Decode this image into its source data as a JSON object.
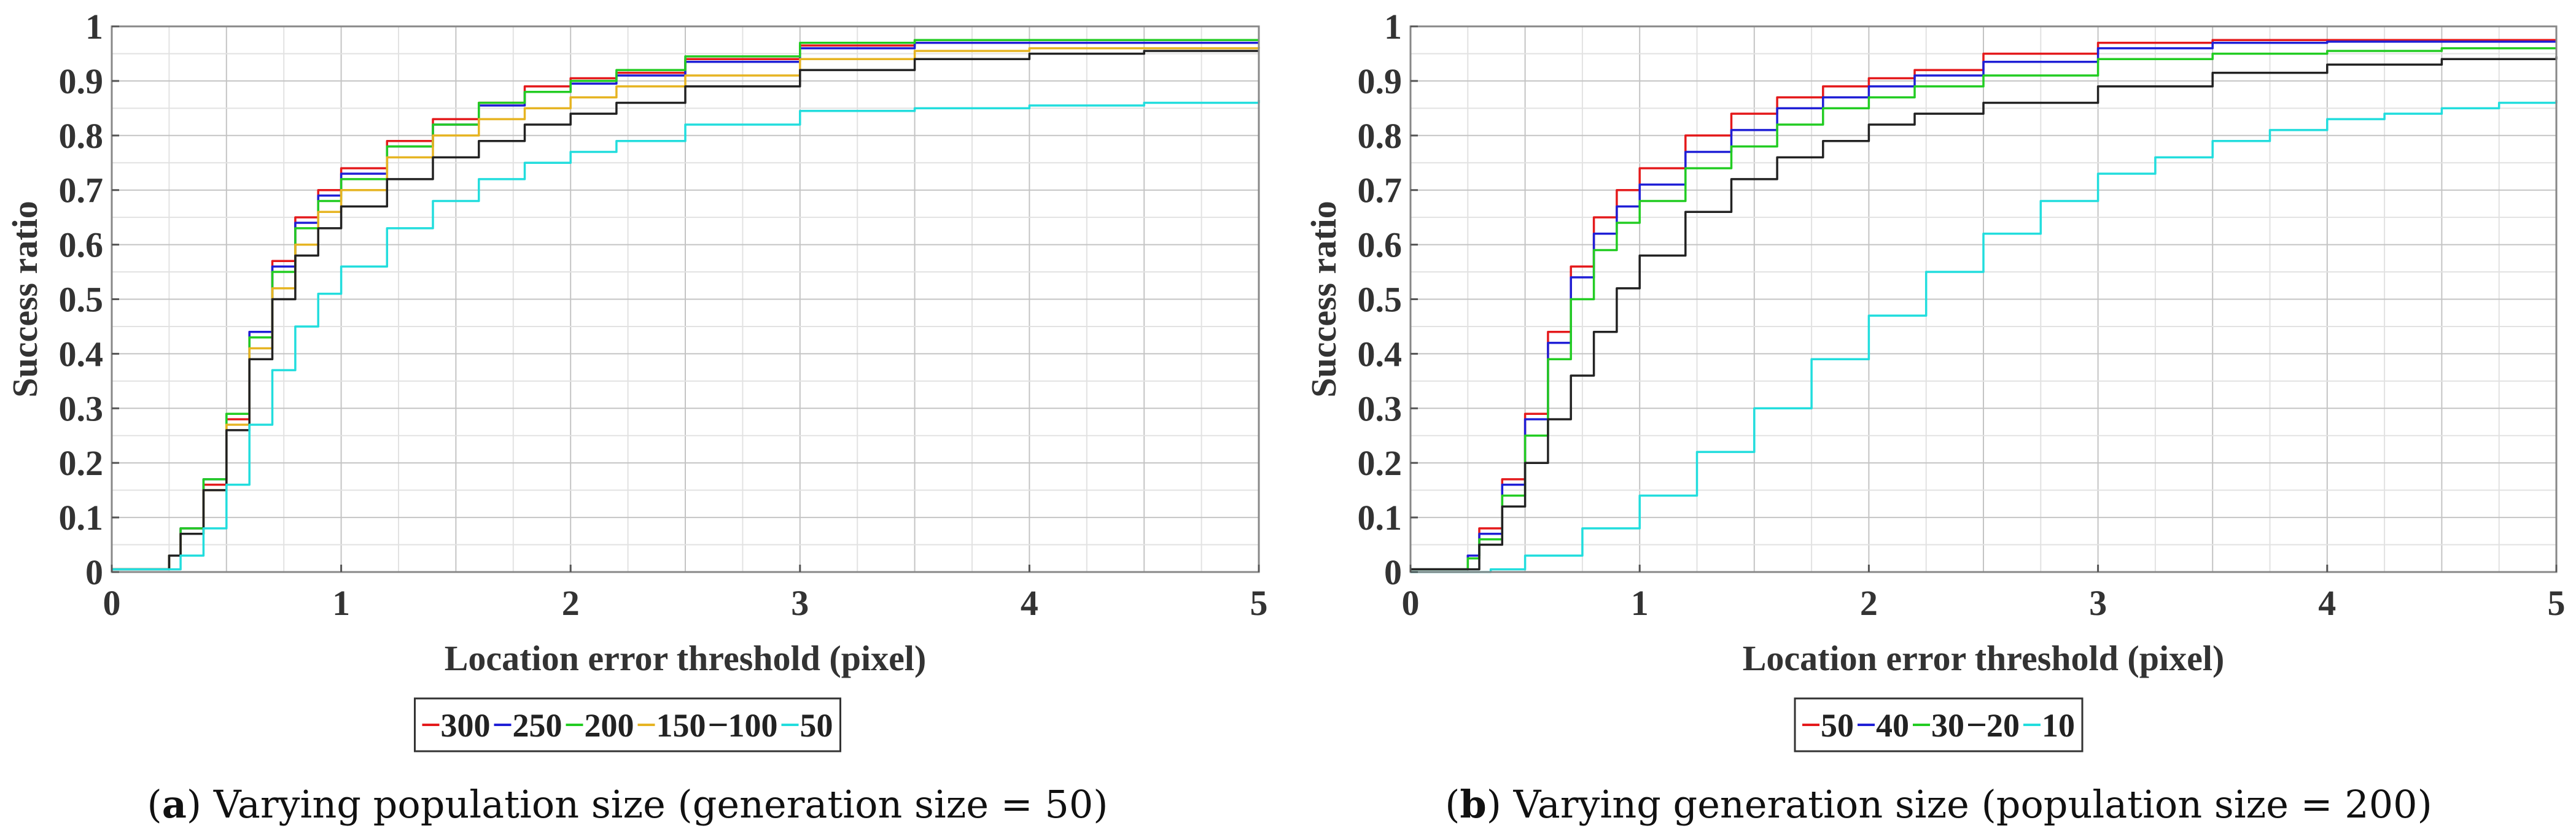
{
  "chart_data": [
    {
      "type": "line",
      "panel_letter": "a",
      "caption": "Varying population size (generation size = 50)",
      "xlabel": "Location error threshold (pixel)",
      "ylabel": "Success ratio",
      "xlim": [
        0,
        5
      ],
      "ylim": [
        0,
        1
      ],
      "x_ticks": [
        "0",
        "1",
        "2",
        "3",
        "4",
        "5"
      ],
      "y_ticks": [
        "0",
        "0.1",
        "0.2",
        "0.3",
        "0.4",
        "0.5",
        "0.6",
        "0.7",
        "0.8",
        "0.9",
        "1"
      ],
      "grid": true,
      "legend_position": "bottom-center",
      "series": [
        {
          "name": "300",
          "color": "#e41a1c",
          "x": [
            0,
            0.18,
            0.25,
            0.3,
            0.4,
            0.5,
            0.6,
            0.7,
            0.8,
            0.9,
            1.0,
            1.2,
            1.4,
            1.6,
            1.8,
            2.0,
            2.2,
            2.5,
            3.0,
            3.5,
            4.0,
            4.5,
            5.0
          ],
          "y": [
            0.005,
            0.005,
            0.03,
            0.08,
            0.16,
            0.28,
            0.44,
            0.57,
            0.65,
            0.7,
            0.74,
            0.79,
            0.83,
            0.86,
            0.89,
            0.905,
            0.915,
            0.94,
            0.965,
            0.975,
            0.975,
            0.975,
            0.975
          ]
        },
        {
          "name": "250",
          "color": "#1f1fd6",
          "x": [
            0,
            0.18,
            0.25,
            0.3,
            0.4,
            0.5,
            0.6,
            0.7,
            0.8,
            0.9,
            1.0,
            1.2,
            1.4,
            1.6,
            1.8,
            2.0,
            2.2,
            2.5,
            3.0,
            3.5,
            4.0,
            4.5,
            5.0
          ],
          "y": [
            0.005,
            0.005,
            0.03,
            0.08,
            0.17,
            0.29,
            0.44,
            0.56,
            0.64,
            0.69,
            0.73,
            0.78,
            0.82,
            0.855,
            0.88,
            0.895,
            0.91,
            0.935,
            0.96,
            0.97,
            0.97,
            0.97,
            0.97
          ]
        },
        {
          "name": "200",
          "color": "#22cc22",
          "x": [
            0,
            0.18,
            0.25,
            0.3,
            0.4,
            0.5,
            0.6,
            0.7,
            0.8,
            0.9,
            1.0,
            1.2,
            1.4,
            1.6,
            1.8,
            2.0,
            2.2,
            2.5,
            3.0,
            3.5,
            4.0,
            4.5,
            5.0
          ],
          "y": [
            0.005,
            0.005,
            0.03,
            0.08,
            0.17,
            0.29,
            0.43,
            0.55,
            0.63,
            0.68,
            0.72,
            0.78,
            0.82,
            0.86,
            0.88,
            0.9,
            0.92,
            0.945,
            0.97,
            0.975,
            0.975,
            0.975,
            0.975
          ]
        },
        {
          "name": "150",
          "color": "#e6b422",
          "x": [
            0,
            0.18,
            0.25,
            0.3,
            0.4,
            0.5,
            0.6,
            0.7,
            0.8,
            0.9,
            1.0,
            1.2,
            1.4,
            1.6,
            1.8,
            2.0,
            2.2,
            2.5,
            3.0,
            3.5,
            4.0,
            4.5,
            5.0
          ],
          "y": [
            0.005,
            0.005,
            0.03,
            0.07,
            0.15,
            0.27,
            0.41,
            0.52,
            0.6,
            0.66,
            0.7,
            0.76,
            0.8,
            0.83,
            0.85,
            0.87,
            0.89,
            0.91,
            0.94,
            0.955,
            0.96,
            0.96,
            0.962
          ]
        },
        {
          "name": "100",
          "color": "#222222",
          "x": [
            0,
            0.18,
            0.25,
            0.3,
            0.4,
            0.5,
            0.6,
            0.7,
            0.8,
            0.9,
            1.0,
            1.2,
            1.4,
            1.6,
            1.8,
            2.0,
            2.2,
            2.5,
            3.0,
            3.5,
            4.0,
            4.5,
            5.0
          ],
          "y": [
            0.005,
            0.005,
            0.03,
            0.07,
            0.15,
            0.26,
            0.39,
            0.5,
            0.58,
            0.63,
            0.67,
            0.72,
            0.76,
            0.79,
            0.82,
            0.84,
            0.86,
            0.89,
            0.92,
            0.94,
            0.95,
            0.955,
            0.955
          ]
        },
        {
          "name": "50",
          "color": "#22dddd",
          "x": [
            0,
            0.2,
            0.3,
            0.4,
            0.5,
            0.6,
            0.7,
            0.8,
            0.9,
            1.0,
            1.2,
            1.4,
            1.6,
            1.8,
            2.0,
            2.2,
            2.5,
            3.0,
            3.5,
            4.0,
            4.5,
            5.0
          ],
          "y": [
            0.005,
            0.005,
            0.03,
            0.08,
            0.16,
            0.27,
            0.37,
            0.45,
            0.51,
            0.56,
            0.63,
            0.68,
            0.72,
            0.75,
            0.77,
            0.79,
            0.82,
            0.845,
            0.85,
            0.855,
            0.86,
            0.865
          ]
        }
      ]
    },
    {
      "type": "line",
      "panel_letter": "b",
      "caption": "Varying generation size (population size = 200)",
      "xlabel": "Location error threshold (pixel)",
      "ylabel": "Success ratio",
      "xlim": [
        0,
        5
      ],
      "ylim": [
        0,
        1
      ],
      "x_ticks": [
        "0",
        "1",
        "2",
        "3",
        "4",
        "5"
      ],
      "y_ticks": [
        "0",
        "0.1",
        "0.2",
        "0.3",
        "0.4",
        "0.5",
        "0.6",
        "0.7",
        "0.8",
        "0.9",
        "1"
      ],
      "grid": true,
      "legend_position": "bottom-center",
      "series": [
        {
          "name": "50",
          "color": "#e41a1c",
          "x": [
            0,
            0.18,
            0.25,
            0.3,
            0.4,
            0.5,
            0.6,
            0.7,
            0.8,
            0.9,
            1.0,
            1.2,
            1.4,
            1.6,
            1.8,
            2.0,
            2.2,
            2.5,
            3.0,
            3.5,
            4.0,
            4.5,
            5.0
          ],
          "y": [
            0.005,
            0.005,
            0.03,
            0.08,
            0.17,
            0.29,
            0.44,
            0.56,
            0.65,
            0.7,
            0.74,
            0.8,
            0.84,
            0.87,
            0.89,
            0.905,
            0.92,
            0.95,
            0.97,
            0.975,
            0.975,
            0.975,
            0.975
          ]
        },
        {
          "name": "40",
          "color": "#1f1fd6",
          "x": [
            0,
            0.18,
            0.25,
            0.3,
            0.4,
            0.5,
            0.6,
            0.7,
            0.8,
            0.9,
            1.0,
            1.2,
            1.4,
            1.6,
            1.8,
            2.0,
            2.2,
            2.5,
            3.0,
            3.5,
            4.0,
            4.5,
            5.0
          ],
          "y": [
            0.005,
            0.005,
            0.03,
            0.07,
            0.16,
            0.28,
            0.42,
            0.54,
            0.62,
            0.67,
            0.71,
            0.77,
            0.81,
            0.85,
            0.87,
            0.89,
            0.91,
            0.935,
            0.96,
            0.97,
            0.972,
            0.972,
            0.972
          ]
        },
        {
          "name": "30",
          "color": "#22cc22",
          "x": [
            0,
            0.18,
            0.25,
            0.3,
            0.4,
            0.5,
            0.6,
            0.7,
            0.8,
            0.9,
            1.0,
            1.2,
            1.4,
            1.6,
            1.8,
            2.0,
            2.2,
            2.5,
            3.0,
            3.5,
            4.0,
            4.5,
            5.0
          ],
          "y": [
            0.005,
            0.005,
            0.025,
            0.06,
            0.14,
            0.25,
            0.39,
            0.5,
            0.59,
            0.64,
            0.68,
            0.74,
            0.78,
            0.82,
            0.85,
            0.87,
            0.89,
            0.91,
            0.94,
            0.95,
            0.955,
            0.96,
            0.96
          ]
        },
        {
          "name": "20",
          "color": "#222222",
          "x": [
            0,
            0.2,
            0.3,
            0.4,
            0.5,
            0.6,
            0.7,
            0.8,
            0.9,
            1.0,
            1.2,
            1.4,
            1.6,
            1.8,
            2.0,
            2.2,
            2.5,
            3.0,
            3.5,
            4.0,
            4.5,
            5.0
          ],
          "y": [
            0.005,
            0.005,
            0.05,
            0.12,
            0.2,
            0.28,
            0.36,
            0.44,
            0.52,
            0.58,
            0.66,
            0.72,
            0.76,
            0.79,
            0.82,
            0.84,
            0.86,
            0.89,
            0.915,
            0.93,
            0.94,
            0.945
          ]
        },
        {
          "name": "10",
          "color": "#22dddd",
          "x": [
            0,
            0.25,
            0.35,
            0.5,
            0.75,
            1.0,
            1.25,
            1.5,
            1.75,
            2.0,
            2.25,
            2.5,
            2.75,
            3.0,
            3.25,
            3.5,
            3.75,
            4.0,
            4.25,
            4.5,
            4.75,
            5.0
          ],
          "y": [
            0,
            0,
            0.005,
            0.03,
            0.08,
            0.14,
            0.22,
            0.3,
            0.39,
            0.47,
            0.55,
            0.62,
            0.68,
            0.73,
            0.76,
            0.79,
            0.81,
            0.83,
            0.84,
            0.85,
            0.86,
            0.865
          ]
        }
      ]
    }
  ]
}
